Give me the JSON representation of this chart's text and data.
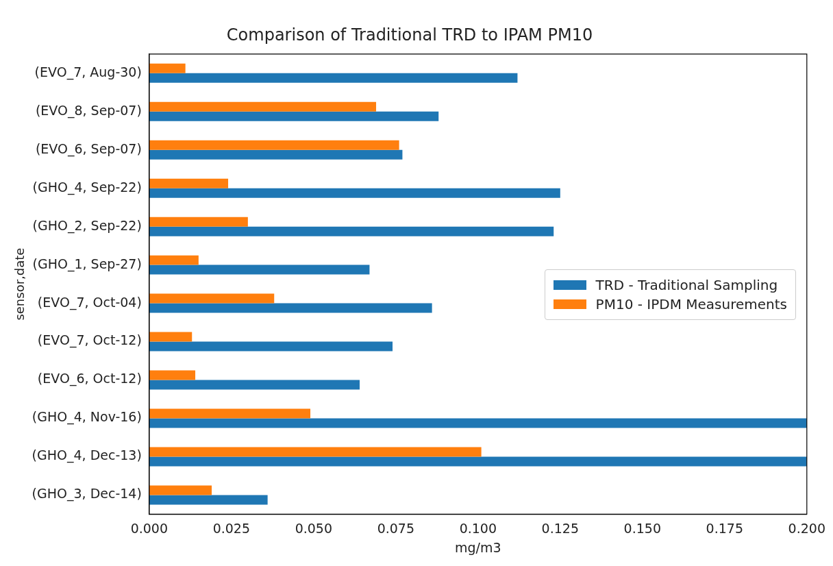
{
  "chart_data": {
    "type": "bar",
    "orientation": "horizontal",
    "title": "Comparison of Traditional TRD to IPAM PM10",
    "xlabel": "mg/m3",
    "ylabel": "sensor,date",
    "categories": [
      "(EVO_7, Aug-30)",
      "(EVO_8, Sep-07)",
      "(EVO_6, Sep-07)",
      "(GHO_4, Sep-22)",
      "(GHO_2, Sep-22)",
      "(GHO_1, Sep-27)",
      "(EVO_7, Oct-04)",
      "(EVO_7, Oct-12)",
      "(EVO_6, Oct-12)",
      "(GHO_4, Nov-16)",
      "(GHO_4, Dec-13)",
      "(GHO_3, Dec-14)"
    ],
    "series": [
      {
        "name": "TRD - Traditional Sampling",
        "color": "#1f77b4",
        "values": [
          0.112,
          0.088,
          0.077,
          0.125,
          0.123,
          0.067,
          0.086,
          0.074,
          0.064,
          0.2,
          0.2,
          0.036
        ]
      },
      {
        "name": "PM10 - IPDM Measurements",
        "color": "#ff7f0e",
        "values": [
          0.011,
          0.069,
          0.076,
          0.024,
          0.03,
          0.015,
          0.038,
          0.013,
          0.014,
          0.049,
          0.101,
          0.019
        ]
      }
    ],
    "xlim": [
      0,
      0.2
    ],
    "xticks": [
      {
        "value": 0,
        "label": "0.000"
      },
      {
        "value": 0.025,
        "label": "0.025"
      },
      {
        "value": 0.05,
        "label": "0.050"
      },
      {
        "value": 0.075,
        "label": "0.075"
      },
      {
        "value": 0.1,
        "label": "0.100"
      },
      {
        "value": 0.125,
        "label": "0.125"
      },
      {
        "value": 0.15,
        "label": "0.150"
      },
      {
        "value": 0.175,
        "label": "0.175"
      },
      {
        "value": 0.2,
        "label": "0.200"
      }
    ],
    "grid": false,
    "legend": "right"
  }
}
